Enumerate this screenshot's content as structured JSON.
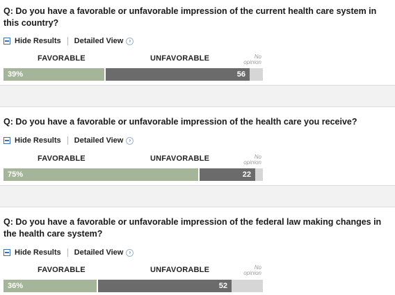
{
  "polls": [
    {
      "question": "Q: Do you have a favorable or unfavorable impression of the current health care system in this country?",
      "hide_label": "Hide Results",
      "detail_label": "Detailed View",
      "favorable_label": "FAVORABLE",
      "unfavorable_label": "UNFAVORABLE",
      "no_opinion_label": "No opinion",
      "favorable_pct": 39,
      "favorable_text": "39%",
      "unfavorable_pct": 56,
      "unfavorable_text": "56",
      "no_opinion_pct": 5
    },
    {
      "question": "Q: Do you have a favorable or unfavorable impression of the health care you receive?",
      "hide_label": "Hide Results",
      "detail_label": "Detailed View",
      "favorable_label": "FAVORABLE",
      "unfavorable_label": "UNFAVORABLE",
      "no_opinion_label": "No opinion",
      "favorable_pct": 75,
      "favorable_text": "75%",
      "unfavorable_pct": 22,
      "unfavorable_text": "22",
      "no_opinion_pct": 3
    },
    {
      "question": "Q: Do you have a favorable or unfavorable impression of the federal law making changes in the health care system?",
      "hide_label": "Hide Results",
      "detail_label": "Detailed View",
      "favorable_label": "FAVORABLE",
      "unfavorable_label": "UNFAVORABLE",
      "no_opinion_label": "No opinion",
      "favorable_pct": 36,
      "favorable_text": "36%",
      "unfavorable_pct": 52,
      "unfavorable_text": "52",
      "no_opinion_pct": 12
    }
  ],
  "colors": {
    "favorable": "#a5b59a",
    "unfavorable": "#6b6b6b",
    "no_opinion": "#d6d6d6",
    "link_icon": "#3c6fb0"
  }
}
